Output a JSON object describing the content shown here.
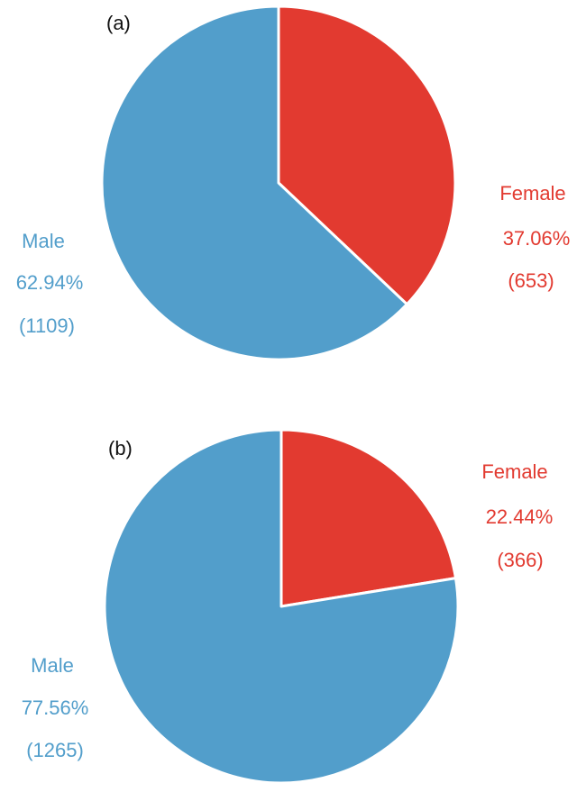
{
  "colors": {
    "male": "#529ecb",
    "female": "#e23a30",
    "stroke": "#ffffff"
  },
  "chart_data": [
    {
      "type": "pie",
      "panel_label": "(a)",
      "slices": [
        {
          "name": "Female",
          "percent_label": "37.06%",
          "count_label": "(653)",
          "value": 653,
          "percent": 37.06,
          "color": "#e23a30"
        },
        {
          "name": "Male",
          "percent_label": "62.94%",
          "count_label": "(1109)",
          "value": 1109,
          "percent": 62.94,
          "color": "#529ecb"
        }
      ]
    },
    {
      "type": "pie",
      "panel_label": "(b)",
      "slices": [
        {
          "name": "Female",
          "percent_label": "22.44%",
          "count_label": "(366)",
          "value": 366,
          "percent": 22.44,
          "color": "#e23a30"
        },
        {
          "name": "Male",
          "percent_label": "77.56%",
          "count_label": "(1265)",
          "value": 1265,
          "percent": 77.56,
          "color": "#529ecb"
        }
      ]
    }
  ]
}
